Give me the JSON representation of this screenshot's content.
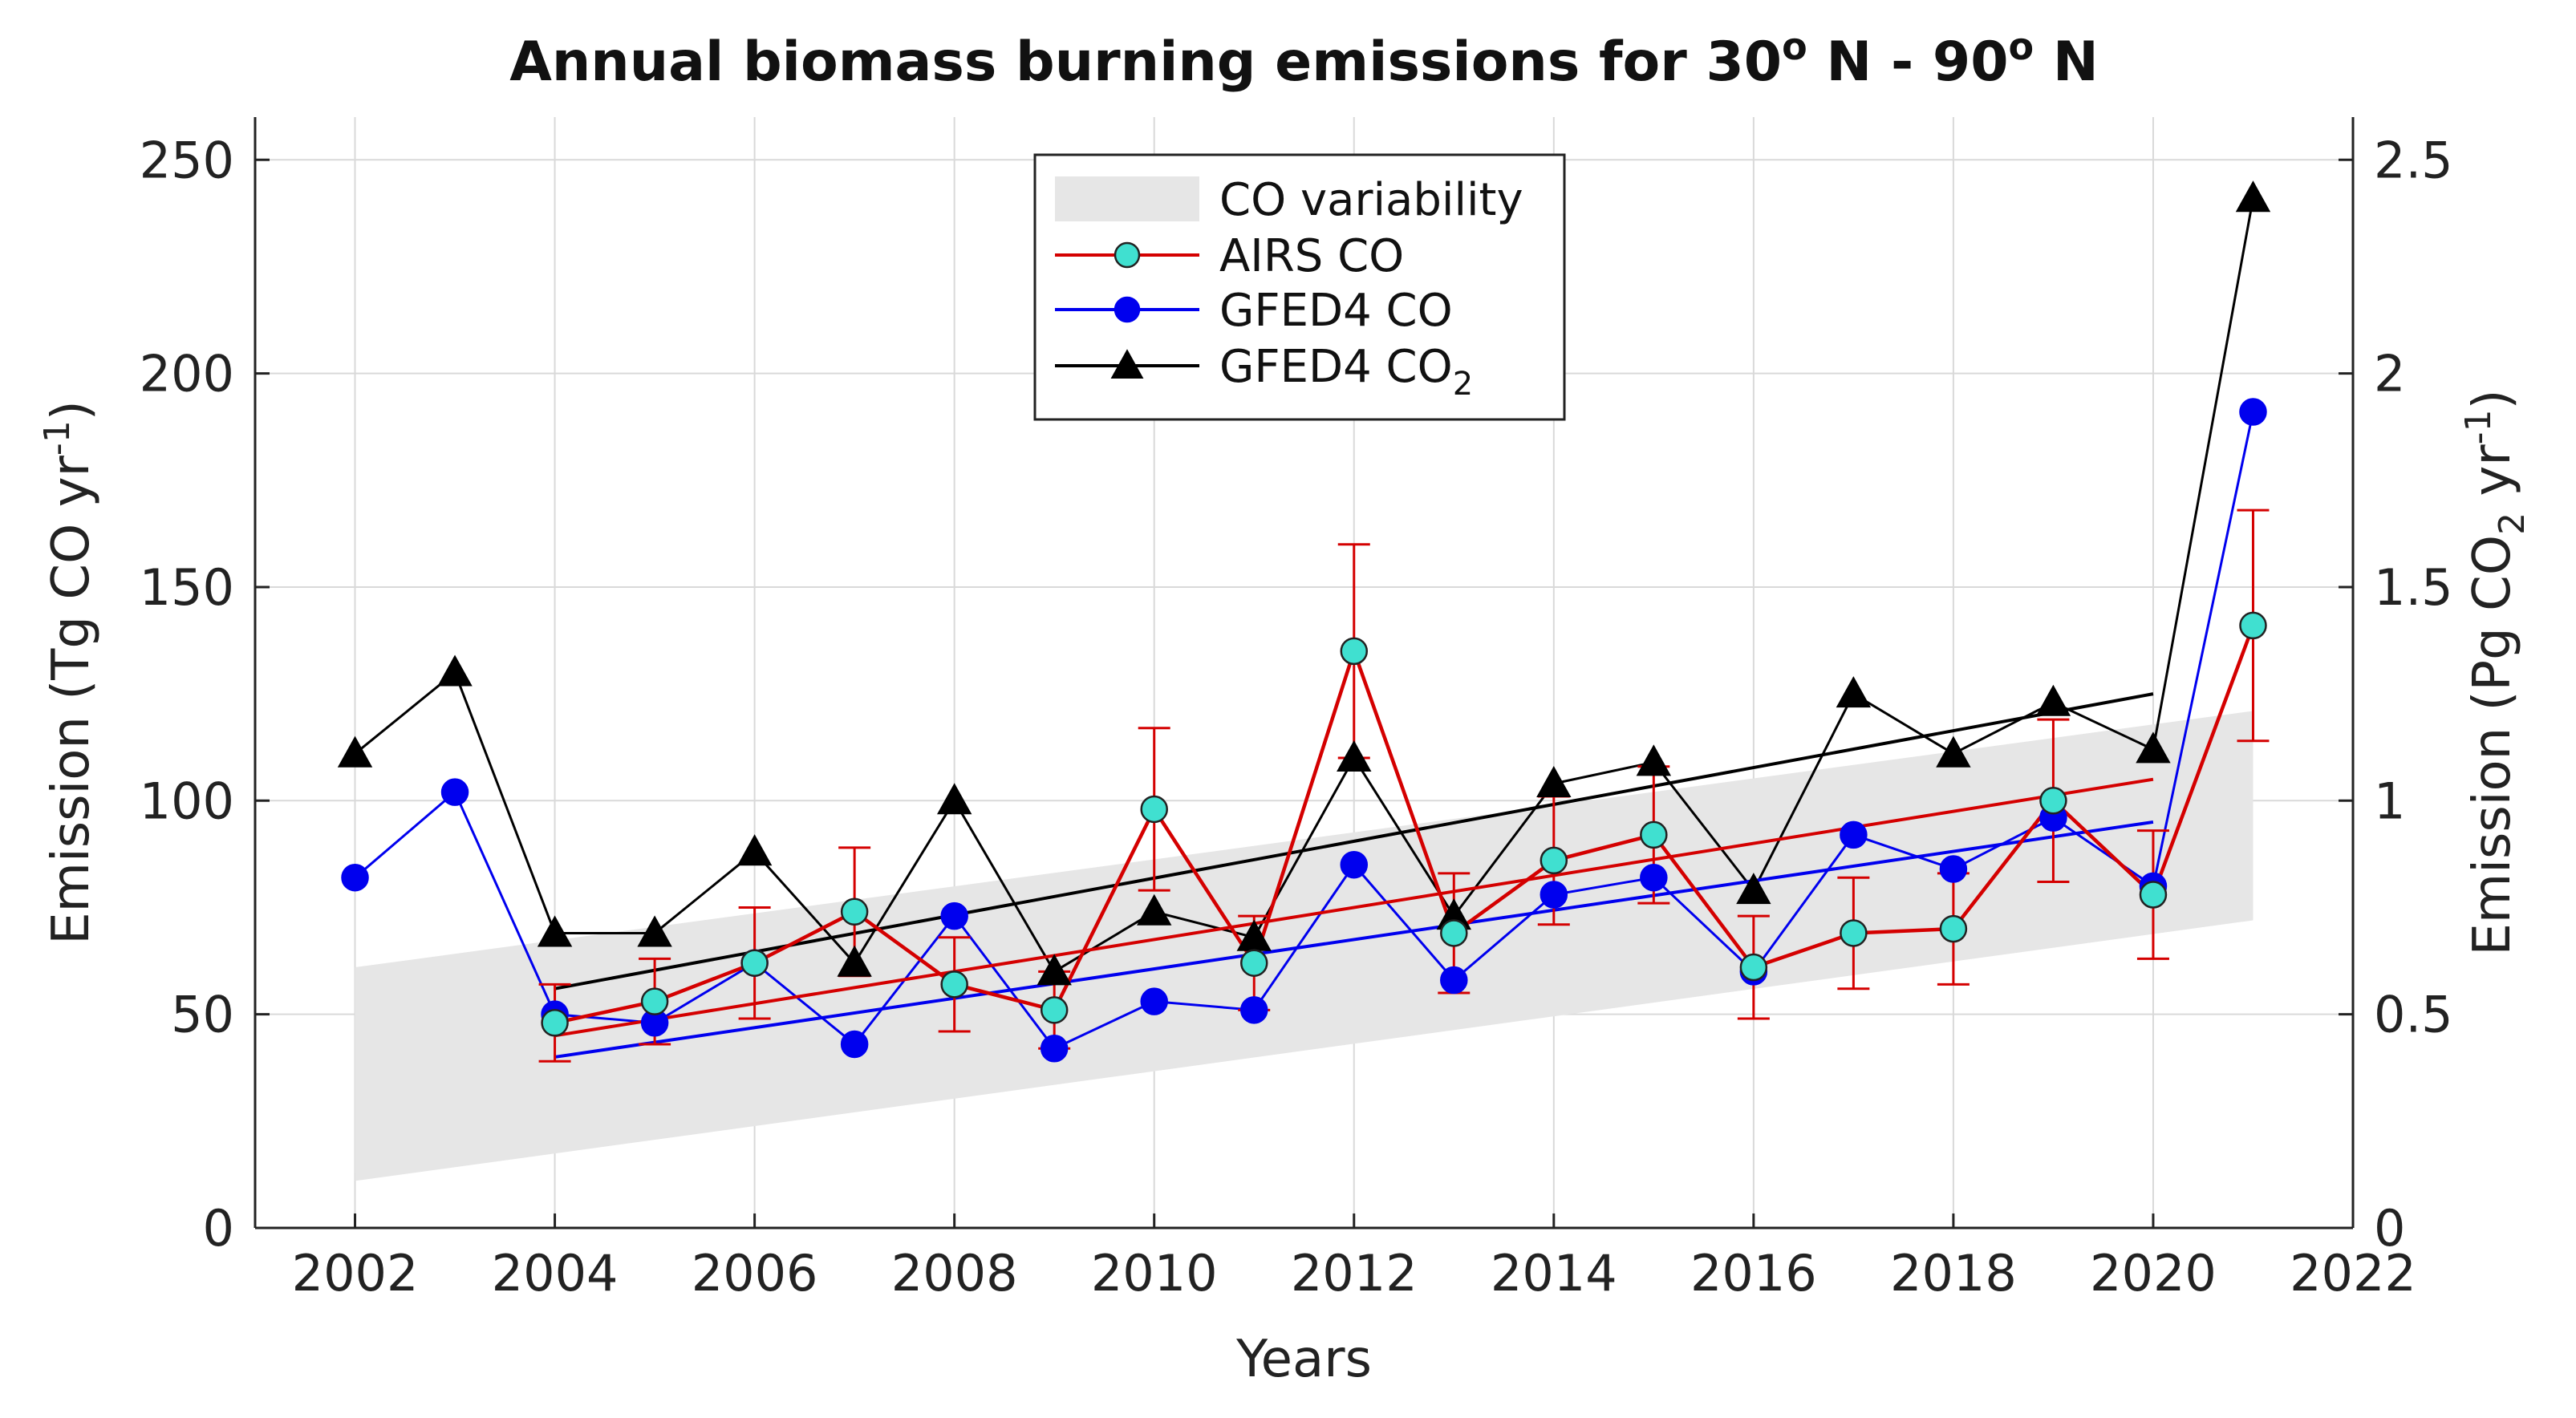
{
  "chart_data": {
    "type": "line",
    "title": {
      "main": "Annual biomass burning emissions for 30",
      "sup1": "o",
      "mid": " N - 90",
      "sup2": "o",
      "end": " N"
    },
    "xlabel": "Years",
    "ylabel_left": {
      "text": "Emission (Tg CO yr",
      "sup": "-1",
      "close": ")"
    },
    "ylabel_right": {
      "text": "Emission (Pg CO",
      "sub": "2",
      "mid": " yr",
      "sup": "-1",
      "close": ")"
    },
    "xlim": [
      2001,
      2022
    ],
    "ylim_left": [
      0,
      260
    ],
    "ylim_right": [
      0,
      2.6
    ],
    "x_ticks": [
      2002,
      2004,
      2006,
      2008,
      2010,
      2012,
      2014,
      2016,
      2018,
      2020,
      2022
    ],
    "y_ticks_left": [
      0,
      50,
      100,
      150,
      200,
      250
    ],
    "y_ticks_right": [
      "0",
      "0.5",
      "1",
      "1.5",
      "2",
      "2.5"
    ],
    "y_ticks_right_values": [
      0,
      0.5,
      1,
      1.5,
      2,
      2.5
    ],
    "grid": true,
    "variability_band": {
      "label": "CO variability",
      "color": "#e6e6e6",
      "x": [
        2002,
        2021
      ],
      "lower": [
        11,
        72
      ],
      "upper": [
        61,
        121
      ]
    },
    "series": [
      {
        "name": "AIRS CO",
        "axis": "left",
        "line_color": "#d40000",
        "marker": "circle",
        "marker_fill": "#40e0d0",
        "marker_edge": "#222222",
        "x": [
          2004,
          2005,
          2006,
          2007,
          2008,
          2009,
          2010,
          2011,
          2012,
          2013,
          2014,
          2015,
          2016,
          2017,
          2018,
          2019,
          2020,
          2021
        ],
        "y": [
          48,
          53,
          62,
          74,
          57,
          51,
          98,
          62,
          135,
          69,
          86,
          92,
          61,
          69,
          70,
          100,
          78,
          141
        ],
        "error": [
          9,
          10,
          13,
          15,
          11,
          9,
          19,
          11,
          25,
          14,
          15,
          16,
          12,
          13,
          13,
          19,
          15,
          27
        ],
        "trend": {
          "x": [
            2004,
            2020
          ],
          "y": [
            45,
            105
          ]
        }
      },
      {
        "name": "GFED4 CO",
        "axis": "left",
        "line_color": "#0000ee",
        "marker": "circle",
        "marker_fill": "#0000ee",
        "marker_edge": "#0000ee",
        "x": [
          2002,
          2003,
          2004,
          2005,
          2006,
          2007,
          2008,
          2009,
          2010,
          2011,
          2012,
          2013,
          2014,
          2015,
          2016,
          2017,
          2018,
          2019,
          2020,
          2021
        ],
        "y": [
          82,
          102,
          50,
          48,
          62,
          43,
          73,
          42,
          53,
          51,
          85,
          58,
          78,
          82,
          60,
          92,
          84,
          96,
          80,
          191
        ],
        "trend": {
          "x": [
            2004,
            2020
          ],
          "y": [
            40,
            95
          ]
        }
      },
      {
        "name": "GFED4 CO",
        "name_sub": "2",
        "axis": "right",
        "line_color": "#000000",
        "marker": "triangle",
        "marker_fill": "#000000",
        "marker_edge": "#000000",
        "x": [
          2002,
          2003,
          2004,
          2005,
          2006,
          2007,
          2008,
          2009,
          2010,
          2011,
          2012,
          2013,
          2014,
          2015,
          2016,
          2017,
          2018,
          2019,
          2020,
          2021
        ],
        "y": [
          1.11,
          1.3,
          0.69,
          0.69,
          0.88,
          0.62,
          1.0,
          0.6,
          0.74,
          0.68,
          1.1,
          0.73,
          1.04,
          1.09,
          0.79,
          1.25,
          1.11,
          1.23,
          1.12,
          2.41
        ],
        "trend": {
          "x": [
            2004,
            2020
          ],
          "y": [
            0.56,
            1.25
          ]
        }
      }
    ],
    "legend": {
      "position": "top-center"
    }
  }
}
